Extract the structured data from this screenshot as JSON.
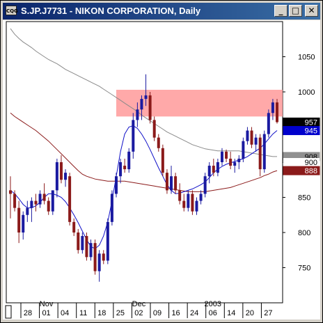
{
  "window": {
    "title": "S.JP.J7731 - NIKON CORPORATION, Daily",
    "icon_label": "CQG",
    "buttons": [
      {
        "name": "minimize",
        "glyph": "_"
      },
      {
        "name": "maximize",
        "glyph": "□"
      },
      {
        "name": "close",
        "glyph": "✕"
      }
    ]
  },
  "colors": {
    "background": "#ffffff",
    "up_candle": "#1a1aa0",
    "down_candle": "#8b1a1a",
    "ma_slow": "#8a8a8a",
    "ma_mid": "#8b1a1a",
    "ma_fast": "#1010c8",
    "resistance_band": "#ff9a9a"
  },
  "chart_data": {
    "type": "candlestick",
    "title": "S.JP.J7731 - NIKON CORPORATION, Daily",
    "ylim": [
      700,
      1100
    ],
    "y_ticks": [
      750,
      800,
      850,
      900,
      950,
      1000,
      1050
    ],
    "x_tick_labels": [
      "28",
      "01",
      "04",
      "11",
      "18",
      "25",
      "02",
      "09",
      "16",
      "24",
      "06",
      "14",
      "20",
      "27"
    ],
    "month_labels": [
      {
        "label": "Nov",
        "at_tick": 1
      },
      {
        "label": "Dec",
        "at_tick": 6
      },
      {
        "label": "2003",
        "at_tick": 10
      }
    ],
    "price_badges": [
      {
        "label": "957",
        "value": 957,
        "bg": "#000000",
        "fg": "#ffffff"
      },
      {
        "label": "945",
        "value": 945,
        "bg": "#0000cc",
        "fg": "#ffffff"
      },
      {
        "label": "908",
        "value": 908,
        "bg": "#909090",
        "fg": "#000000"
      },
      {
        "label": "900",
        "value": 900,
        "bg": "#ffffff",
        "fg": "#000000"
      },
      {
        "label": "888",
        "value": 888,
        "bg": "#8b1a1a",
        "fg": "#ffffff"
      }
    ],
    "resistance_zone": {
      "from": 965,
      "to": 1003,
      "start_index": 25
    },
    "candles": [
      [
        860,
        880,
        820,
        855
      ],
      [
        855,
        860,
        830,
        835
      ],
      [
        835,
        845,
        785,
        800
      ],
      [
        800,
        830,
        790,
        825
      ],
      [
        825,
        845,
        815,
        835
      ],
      [
        835,
        850,
        815,
        845
      ],
      [
        845,
        855,
        830,
        840
      ],
      [
        840,
        860,
        835,
        855
      ],
      [
        855,
        870,
        840,
        845
      ],
      [
        845,
        850,
        825,
        830
      ],
      [
        830,
        860,
        825,
        860
      ],
      [
        860,
        905,
        850,
        900
      ],
      [
        900,
        910,
        870,
        875
      ],
      [
        875,
        890,
        865,
        885
      ],
      [
        880,
        885,
        810,
        815
      ],
      [
        815,
        820,
        795,
        800
      ],
      [
        800,
        805,
        770,
        775
      ],
      [
        775,
        800,
        770,
        795
      ],
      [
        795,
        800,
        760,
        765
      ],
      [
        765,
        790,
        760,
        785
      ],
      [
        785,
        790,
        740,
        745
      ],
      [
        745,
        775,
        730,
        770
      ],
      [
        770,
        775,
        755,
        760
      ],
      [
        760,
        820,
        755,
        815
      ],
      [
        815,
        860,
        810,
        855
      ],
      [
        855,
        885,
        850,
        880
      ],
      [
        880,
        905,
        870,
        900
      ],
      [
        895,
        905,
        885,
        890
      ],
      [
        890,
        920,
        885,
        915
      ],
      [
        915,
        970,
        905,
        960
      ],
      [
        960,
        985,
        950,
        975
      ],
      [
        975,
        995,
        960,
        990
      ],
      [
        990,
        1025,
        980,
        995
      ],
      [
        995,
        1000,
        955,
        960
      ],
      [
        960,
        965,
        930,
        935
      ],
      [
        935,
        940,
        915,
        920
      ],
      [
        920,
        925,
        880,
        885
      ],
      [
        885,
        890,
        855,
        860
      ],
      [
        860,
        895,
        855,
        880
      ],
      [
        880,
        885,
        855,
        860
      ],
      [
        860,
        870,
        840,
        845
      ],
      [
        845,
        855,
        830,
        835
      ],
      [
        835,
        860,
        830,
        855
      ],
      [
        855,
        860,
        825,
        830
      ],
      [
        830,
        850,
        825,
        845
      ],
      [
        845,
        860,
        840,
        855
      ],
      [
        855,
        885,
        850,
        880
      ],
      [
        880,
        900,
        870,
        895
      ],
      [
        895,
        905,
        880,
        885
      ],
      [
        885,
        905,
        880,
        900
      ],
      [
        900,
        920,
        895,
        915
      ],
      [
        915,
        918,
        900,
        905
      ],
      [
        905,
        915,
        890,
        895
      ],
      [
        895,
        905,
        885,
        900
      ],
      [
        900,
        910,
        890,
        905
      ],
      [
        905,
        935,
        900,
        930
      ],
      [
        930,
        950,
        925,
        945
      ],
      [
        945,
        950,
        920,
        925
      ],
      [
        925,
        940,
        915,
        935
      ],
      [
        935,
        940,
        880,
        890
      ],
      [
        890,
        945,
        885,
        940
      ],
      [
        940,
        975,
        935,
        970
      ],
      [
        970,
        990,
        960,
        985
      ],
      [
        985,
        990,
        955,
        957
      ]
    ],
    "series": [
      {
        "name": "slow",
        "values": [
          1090,
          1082,
          1076,
          1071,
          1067,
          1063,
          1058,
          1054,
          1050,
          1046,
          1043,
          1040,
          1036,
          1032,
          1029,
          1026,
          1023,
          1020,
          1017,
          1014,
          1011,
          1008,
          1004,
          1000,
          996,
          992,
          988,
          984,
          980,
          976,
          972,
          967,
          963,
          959,
          955,
          951,
          947,
          943,
          940,
          937,
          934,
          931,
          928,
          925,
          923,
          921,
          919,
          918,
          917,
          916,
          916,
          916,
          916,
          916,
          916,
          915,
          914,
          913,
          912,
          911,
          910,
          909,
          908,
          908
        ]
      },
      {
        "name": "mid",
        "values": [
          970,
          965,
          961,
          957,
          953,
          949,
          945,
          940,
          935,
          930,
          924,
          918,
          912,
          906,
          900,
          894,
          888,
          883,
          880,
          878,
          876,
          875,
          874,
          873,
          873,
          873,
          873,
          873,
          872,
          871,
          870,
          869,
          868,
          867,
          866,
          865,
          864,
          863,
          862,
          861,
          860,
          859,
          858,
          858,
          858,
          858,
          858,
          859,
          860,
          861,
          862,
          863,
          864,
          866,
          868,
          870,
          872,
          874,
          876,
          878,
          881,
          883,
          886,
          888
        ]
      },
      {
        "name": "fast",
        "values": [
          860,
          855,
          848,
          840,
          835,
          835,
          838,
          843,
          850,
          855,
          855,
          853,
          850,
          844,
          835,
          825,
          814,
          802,
          790,
          780,
          777,
          782,
          795,
          815,
          845,
          880,
          915,
          940,
          950,
          952,
          948,
          940,
          930,
          918,
          905,
          892,
          880,
          868,
          860,
          855,
          856,
          858,
          860,
          862,
          865,
          868,
          872,
          878,
          885,
          890,
          894,
          897,
          899,
          901,
          903,
          905,
          908,
          912,
          916,
          920,
          926,
          933,
          940,
          945
        ]
      }
    ]
  }
}
